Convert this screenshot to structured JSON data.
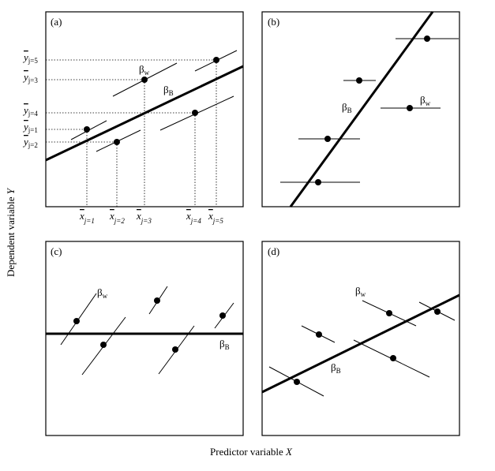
{
  "axes": {
    "y_label": {
      "text": "Dependent variable",
      "variable": "Y"
    },
    "x_label": {
      "text": "Predictor variable",
      "variable": "X"
    }
  },
  "panels": [
    {
      "label": "(a)",
      "beta_w": {
        "symbol": "β",
        "sub": "w"
      },
      "beta_b": {
        "symbol": "β",
        "sub": "B"
      },
      "y_means": [
        {
          "symbol": "y",
          "sub": "j=5"
        },
        {
          "symbol": "y",
          "sub": "j=3"
        },
        {
          "symbol": "y",
          "sub": "j=4"
        },
        {
          "symbol": "y",
          "sub": "j=1"
        },
        {
          "symbol": "y",
          "sub": "j=2"
        }
      ],
      "x_means": [
        {
          "symbol": "x",
          "sub": "j=1"
        },
        {
          "symbol": "x",
          "sub": "j=2"
        },
        {
          "symbol": "x",
          "sub": "j=3"
        },
        {
          "symbol": "x",
          "sub": "j=4"
        },
        {
          "symbol": "x",
          "sub": "j=5"
        }
      ]
    },
    {
      "label": "(b)",
      "beta_w": {
        "symbol": "β",
        "sub": "w"
      },
      "beta_b": {
        "symbol": "β",
        "sub": "B"
      }
    },
    {
      "label": "(c)",
      "beta_w": {
        "symbol": "β",
        "sub": "w"
      },
      "beta_b": {
        "symbol": "β",
        "sub": "B"
      }
    },
    {
      "label": "(d)",
      "beta_w": {
        "symbol": "β",
        "sub": "w"
      },
      "beta_b": {
        "symbol": "β",
        "sub": "B"
      }
    }
  ]
}
